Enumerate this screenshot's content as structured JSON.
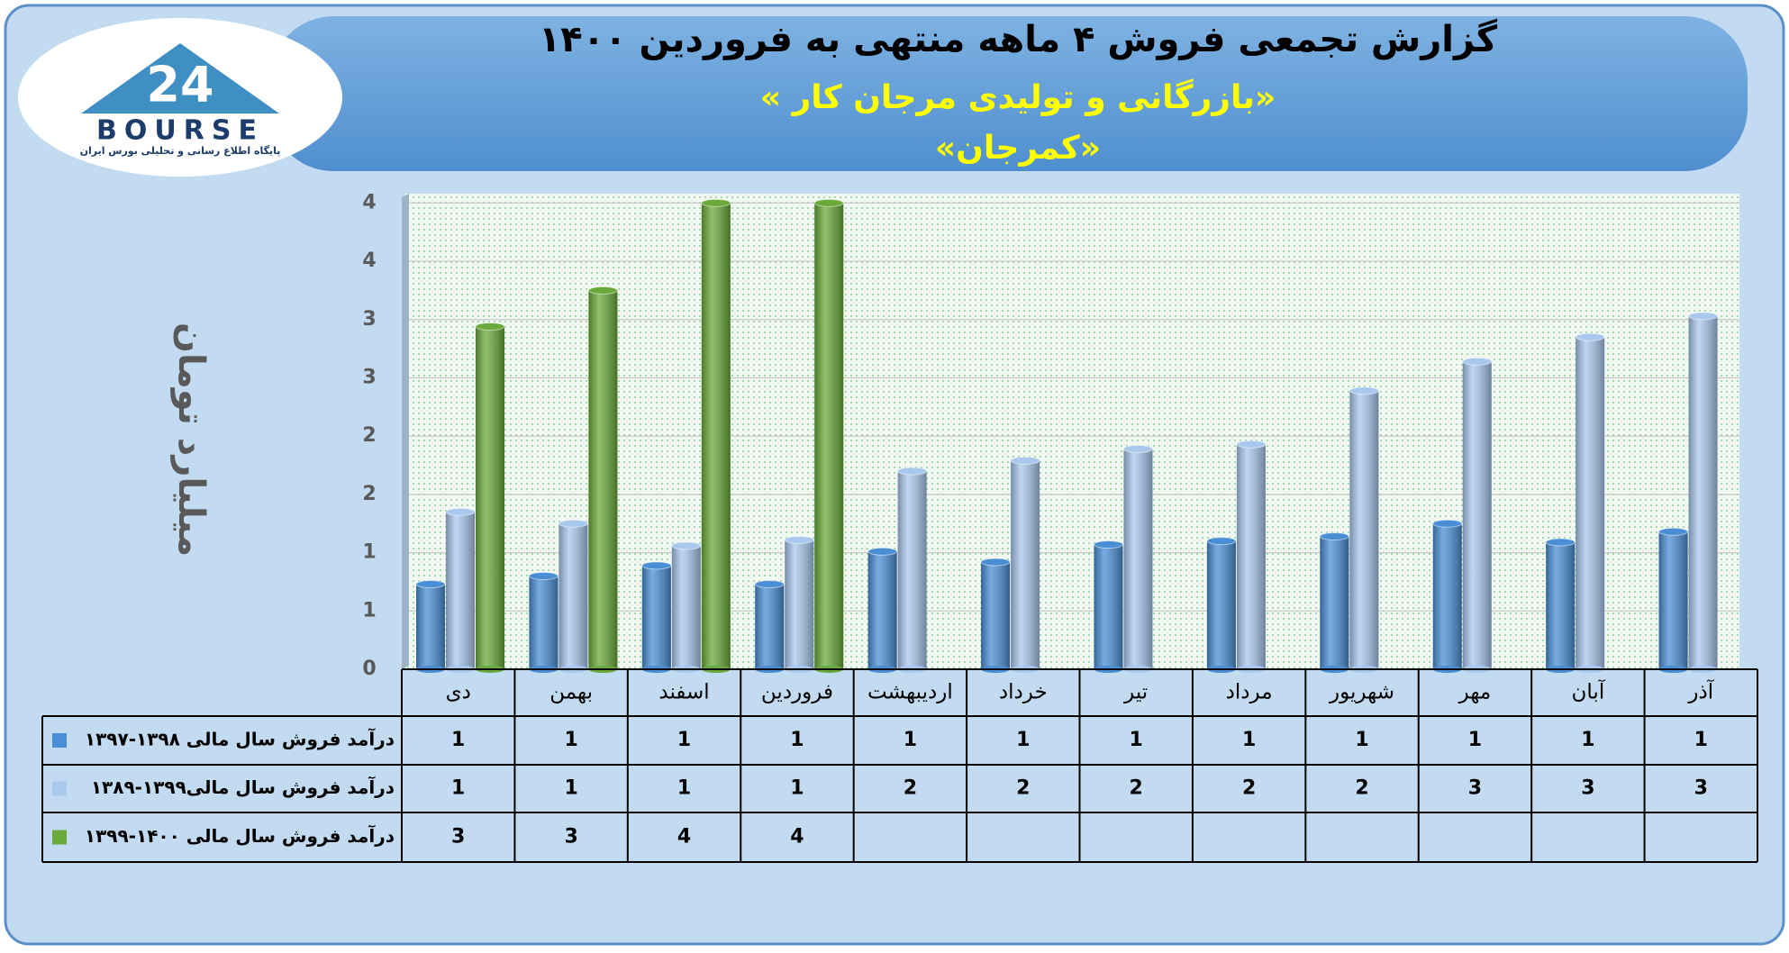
{
  "logo": {
    "number": "24",
    "name": "BOURSE",
    "tagline": "پایگاه اطلاع رسانی و تحلیلی بورس ایران"
  },
  "chart_data": {
    "type": "bar",
    "title": "گزارش تجمعی فروش ۴ ماهه منتهی به فروردین ۱۴۰۰",
    "subtitle": [
      "«بازرگانی و تولیدی مرجان کار »",
      "«کمرجان»"
    ],
    "y_label": "میلیارد تومان",
    "categories": [
      "دی",
      "بهمن",
      "اسفند",
      "فروردین",
      "اردیبهشت",
      "خرداد",
      "تیر",
      "مرداد",
      "شهریور",
      "مهر",
      "آبان",
      "آذر"
    ],
    "series": [
      {
        "name": "درآمد فروش سال مالی ۱۳۹۸-۱۳۹۷",
        "color": "#4a8fd6",
        "values": [
          0.73,
          0.8,
          0.89,
          0.73,
          1.01,
          0.92,
          1.07,
          1.1,
          1.14,
          1.25,
          1.09,
          1.18
        ],
        "value_labels": [
          "1",
          "1",
          "1",
          "1",
          "1",
          "1",
          "1",
          "1",
          "1",
          "1",
          "1",
          "1"
        ]
      },
      {
        "name": "درآمد فروش سال مالی۱۳۹۹-۱۳۸۹",
        "color": "#a9c8ee",
        "values": [
          1.35,
          1.25,
          1.06,
          1.11,
          1.7,
          1.79,
          1.89,
          1.93,
          2.39,
          2.64,
          2.85,
          3.03
        ],
        "value_labels": [
          "1",
          "1",
          "1",
          "1",
          "2",
          "2",
          "2",
          "2",
          "2",
          "3",
          "3",
          "3"
        ]
      },
      {
        "name": "درآمد فروش سال مالی ۱۴۰۰-۱۳۹۹",
        "color": "#6aaa3a",
        "values": [
          2.94,
          3.25,
          4.0,
          4.0,
          null,
          null,
          null,
          null,
          null,
          null,
          null,
          null
        ],
        "value_labels": [
          "3",
          "3",
          "4",
          "4",
          null,
          null,
          null,
          null,
          null,
          null,
          null,
          null
        ]
      }
    ],
    "ylim": [
      0,
      4.08
    ],
    "yticks": [
      0,
      {
        "value": 0.5,
        "label": "1"
      },
      1,
      {
        "value": 1.5,
        "label": "2"
      },
      2,
      {
        "value": 2.5,
        "label": "3"
      },
      3,
      {
        "value": 3.5,
        "label": "4"
      },
      4
    ],
    "grid": true,
    "data_table": true
  }
}
